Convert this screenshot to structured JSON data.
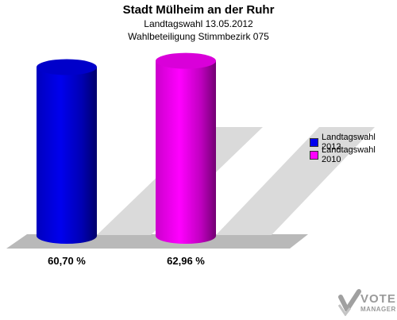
{
  "header": {
    "title": "Stadt Mülheim an der Ruhr",
    "subtitle1": "Landtagswahl 13.05.2012",
    "subtitle2": "Wahlbeteiligung Stimmbezirk 075"
  },
  "chart_data": {
    "type": "bar",
    "style": "3d-cylinder",
    "categories": [
      "Landtagswahl 2012",
      "Landtagswahl 2010"
    ],
    "values": [
      60.7,
      62.96
    ],
    "value_labels": [
      "60,70 %",
      "62,96 %"
    ],
    "colors": [
      "#0000ee",
      "#ff00ff"
    ],
    "legend": [
      "Landtagswahl 2012",
      "Landtagswahl 2010"
    ],
    "legend_position": "right",
    "grid": false
  },
  "logo": {
    "line1": "VOTE",
    "line2": "MANAGER"
  }
}
